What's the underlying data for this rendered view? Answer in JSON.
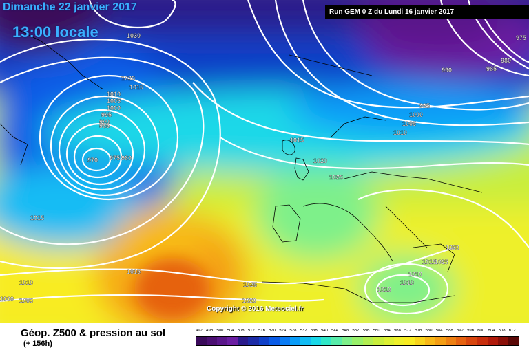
{
  "header": {
    "date": "Dimanche 22 janvier 2017",
    "time": "13:00 locale",
    "run": "Run GEM 0 Z du Lundi 16 janvier 2017"
  },
  "isobar_labels": [
    "1030",
    "1020",
    "1015",
    "1010",
    "1005",
    "1000",
    "995",
    "990",
    "985",
    "970",
    "975",
    "980",
    "1015",
    "1020",
    "1025",
    "995",
    "1000",
    "1005",
    "1010",
    "990",
    "985",
    "980",
    "975",
    "1015",
    "1010",
    "1000",
    "1005",
    "1015",
    "1025",
    "1020",
    "1030",
    "1015",
    "1025",
    "1010",
    "1010",
    "1010"
  ],
  "copyright": "Copyright © 2016 Meteociel.fr",
  "legend": {
    "title": "Géop. Z500 & pression au sol",
    "subtitle": "(+ 156h)",
    "scale_labels": [
      "492",
      "496",
      "500",
      "504",
      "508",
      "512",
      "516",
      "520",
      "524",
      "528",
      "532",
      "536",
      "540",
      "544",
      "548",
      "552",
      "556",
      "560",
      "564",
      "568",
      "572",
      "576",
      "580",
      "584",
      "588",
      "592",
      "596",
      "600",
      "604",
      "608",
      "612"
    ],
    "scale_colors": [
      "#3a0a5a",
      "#4b0f72",
      "#5a168a",
      "#6b1ea2",
      "#2a1a8a",
      "#1c2ba6",
      "#1040c8",
      "#0a5be6",
      "#0a7bf4",
      "#0a9cf8",
      "#12bcf4",
      "#1ad8e8",
      "#30e8c8",
      "#58ecaa",
      "#7ef08a",
      "#98f06a",
      "#b2ee52",
      "#c8ee3c",
      "#dcf032",
      "#eef02a",
      "#f8ec22",
      "#f8d41c",
      "#f8b818",
      "#f49e14",
      "#ee8012",
      "#e66210",
      "#d8460e",
      "#c82e0c",
      "#b01a0a",
      "#8a1008",
      "#5a0806"
    ]
  }
}
